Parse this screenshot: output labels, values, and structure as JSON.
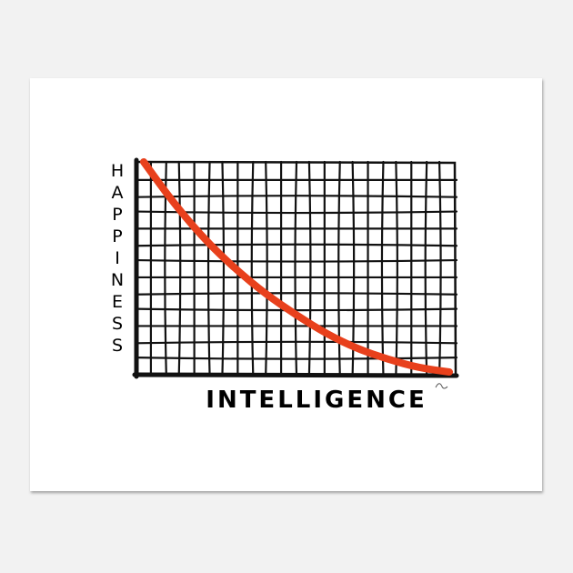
{
  "colors": {
    "background": "#f2f2f2",
    "paper": "#ffffff",
    "grid": "#111111",
    "curve": "#e8401c"
  },
  "chart_data": {
    "type": "line",
    "title": "",
    "xlabel": "INTELLIGENCE",
    "ylabel": "HAPPINESS",
    "grid": true,
    "series": [
      {
        "values": [
          {
            "x": 0,
            "y": 100
          },
          {
            "x": 10,
            "y": 80
          },
          {
            "x": 20,
            "y": 63
          },
          {
            "x": 30,
            "y": 49
          },
          {
            "x": 40,
            "y": 37
          },
          {
            "x": 50,
            "y": 27
          },
          {
            "x": 60,
            "y": 18
          },
          {
            "x": 70,
            "y": 11
          },
          {
            "x": 80,
            "y": 6
          },
          {
            "x": 90,
            "y": 2
          },
          {
            "x": 100,
            "y": 0
          }
        ]
      }
    ],
    "xlim": [
      0,
      100
    ],
    "ylim": [
      0,
      100
    ]
  }
}
